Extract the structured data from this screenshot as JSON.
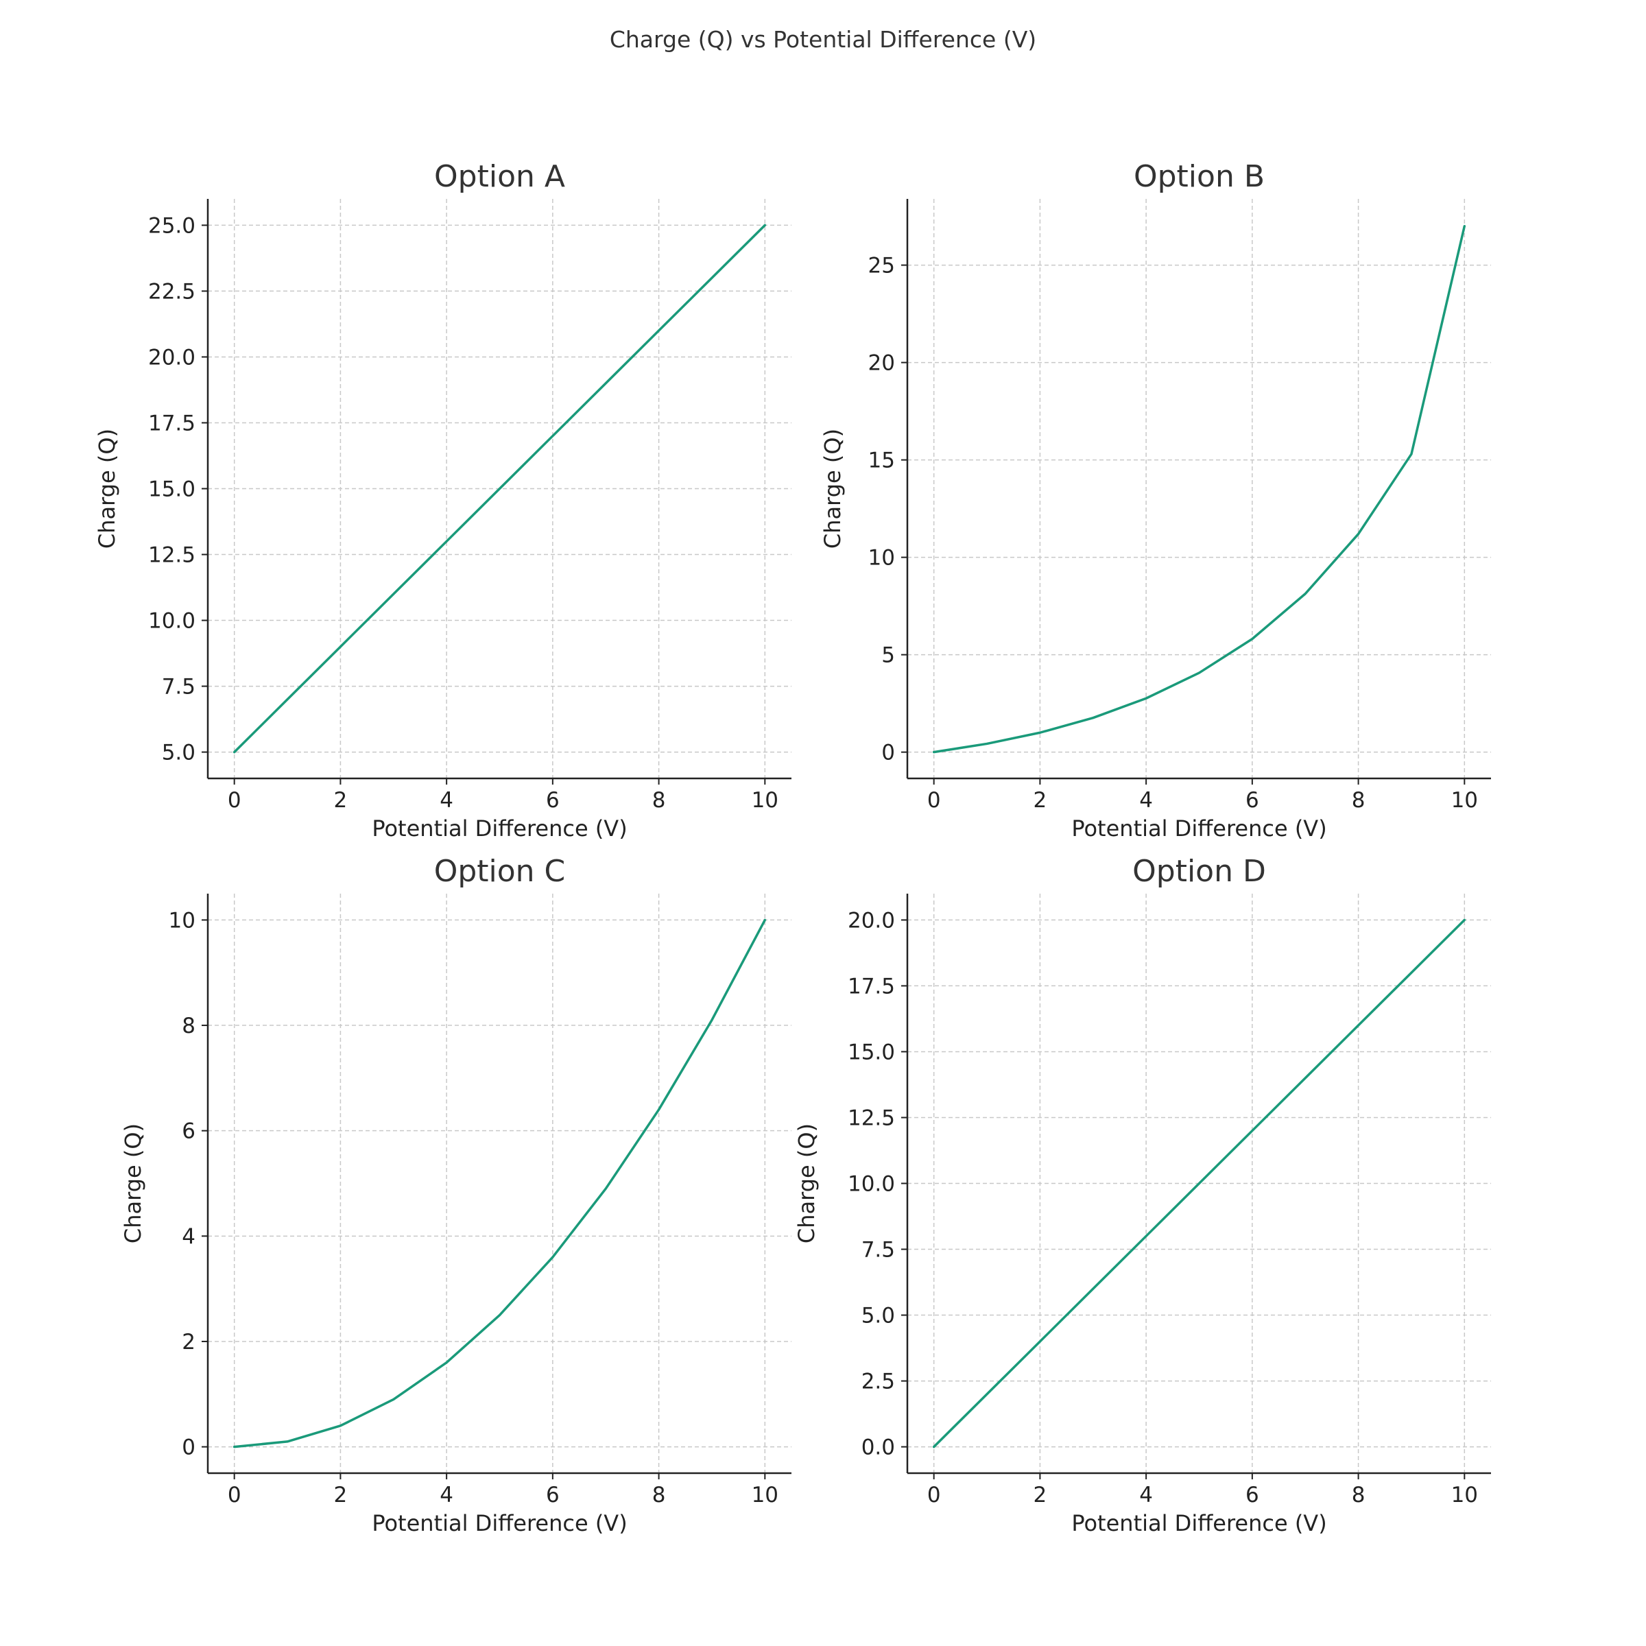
{
  "figure": {
    "suptitle": "Charge (Q) vs Potential Difference (V)",
    "colors": {
      "line": "#1a9a7a",
      "axis": "#222222",
      "grid": "#c8c8c8",
      "text": "#333333",
      "tick_text": "#222222"
    }
  },
  "chart_data": [
    {
      "type": "line",
      "title": "Option A",
      "xlabel": "Potential Difference (V)",
      "ylabel": "Charge (Q)",
      "xlim": [
        -0.5,
        10.5
      ],
      "ylim": [
        4.0,
        26.0
      ],
      "xticks": [
        0,
        2,
        4,
        6,
        8,
        10
      ],
      "xtick_labels": [
        "0",
        "2",
        "4",
        "6",
        "8",
        "10"
      ],
      "yticks": [
        5.0,
        7.5,
        10.0,
        12.5,
        15.0,
        17.5,
        20.0,
        22.5,
        25.0
      ],
      "ytick_labels": [
        "5.0",
        "7.5",
        "10.0",
        "12.5",
        "15.0",
        "17.5",
        "20.0",
        "22.5",
        "25.0"
      ],
      "grid": true,
      "series": [
        {
          "x": [
            0,
            1,
            2,
            3,
            4,
            5,
            6,
            7,
            8,
            9,
            10
          ],
          "y": [
            5,
            7,
            9,
            11,
            13,
            15,
            17,
            19,
            21,
            23,
            25
          ]
        }
      ]
    },
    {
      "type": "line",
      "title": "Option B",
      "xlabel": "Potential Difference (V)",
      "ylabel": "Charge (Q)",
      "xlim": [
        -0.5,
        10.5
      ],
      "ylim": [
        -1.35,
        28.4
      ],
      "xticks": [
        0,
        2,
        4,
        6,
        8,
        10
      ],
      "xtick_labels": [
        "0",
        "2",
        "4",
        "6",
        "8",
        "10"
      ],
      "yticks": [
        0,
        5,
        10,
        15,
        20,
        25
      ],
      "ytick_labels": [
        "0",
        "5",
        "10",
        "15",
        "20",
        "25"
      ],
      "grid": true,
      "series": [
        {
          "x": [
            0,
            1,
            2,
            3,
            4,
            5,
            6,
            7,
            8,
            9,
            10
          ],
          "y": [
            0,
            0.43,
            1.0,
            1.76,
            2.76,
            4.07,
            5.81,
            8.13,
            11.2,
            15.3,
            27.0
          ]
        }
      ]
    },
    {
      "type": "line",
      "title": "Option C",
      "xlabel": "Potential Difference (V)",
      "ylabel": "Charge (Q)",
      "xlim": [
        -0.5,
        10.5
      ],
      "ylim": [
        -0.5,
        10.5
      ],
      "xticks": [
        0,
        2,
        4,
        6,
        8,
        10
      ],
      "xtick_labels": [
        "0",
        "2",
        "4",
        "6",
        "8",
        "10"
      ],
      "yticks": [
        0,
        2,
        4,
        6,
        8,
        10
      ],
      "ytick_labels": [
        "0",
        "2",
        "4",
        "6",
        "8",
        "10"
      ],
      "grid": true,
      "series": [
        {
          "x": [
            0,
            1,
            2,
            3,
            4,
            5,
            6,
            7,
            8,
            9,
            10
          ],
          "y": [
            0,
            0.1,
            0.4,
            0.9,
            1.6,
            2.5,
            3.6,
            4.9,
            6.4,
            8.1,
            10.0
          ]
        }
      ]
    },
    {
      "type": "line",
      "title": "Option D",
      "xlabel": "Potential Difference (V)",
      "ylabel": "Charge (Q)",
      "xlim": [
        -0.5,
        10.5
      ],
      "ylim": [
        -1.0,
        21.0
      ],
      "xticks": [
        0,
        2,
        4,
        6,
        8,
        10
      ],
      "xtick_labels": [
        "0",
        "2",
        "4",
        "6",
        "8",
        "10"
      ],
      "yticks": [
        0.0,
        2.5,
        5.0,
        7.5,
        10.0,
        12.5,
        15.0,
        17.5,
        20.0
      ],
      "ytick_labels": [
        "0.0",
        "2.5",
        "5.0",
        "7.5",
        "10.0",
        "12.5",
        "15.0",
        "17.5",
        "20.0"
      ],
      "grid": true,
      "series": [
        {
          "x": [
            0,
            1,
            2,
            3,
            4,
            5,
            6,
            7,
            8,
            9,
            10
          ],
          "y": [
            0,
            2,
            4,
            6,
            8,
            10,
            12,
            14,
            16,
            18,
            20
          ]
        }
      ]
    }
  ]
}
